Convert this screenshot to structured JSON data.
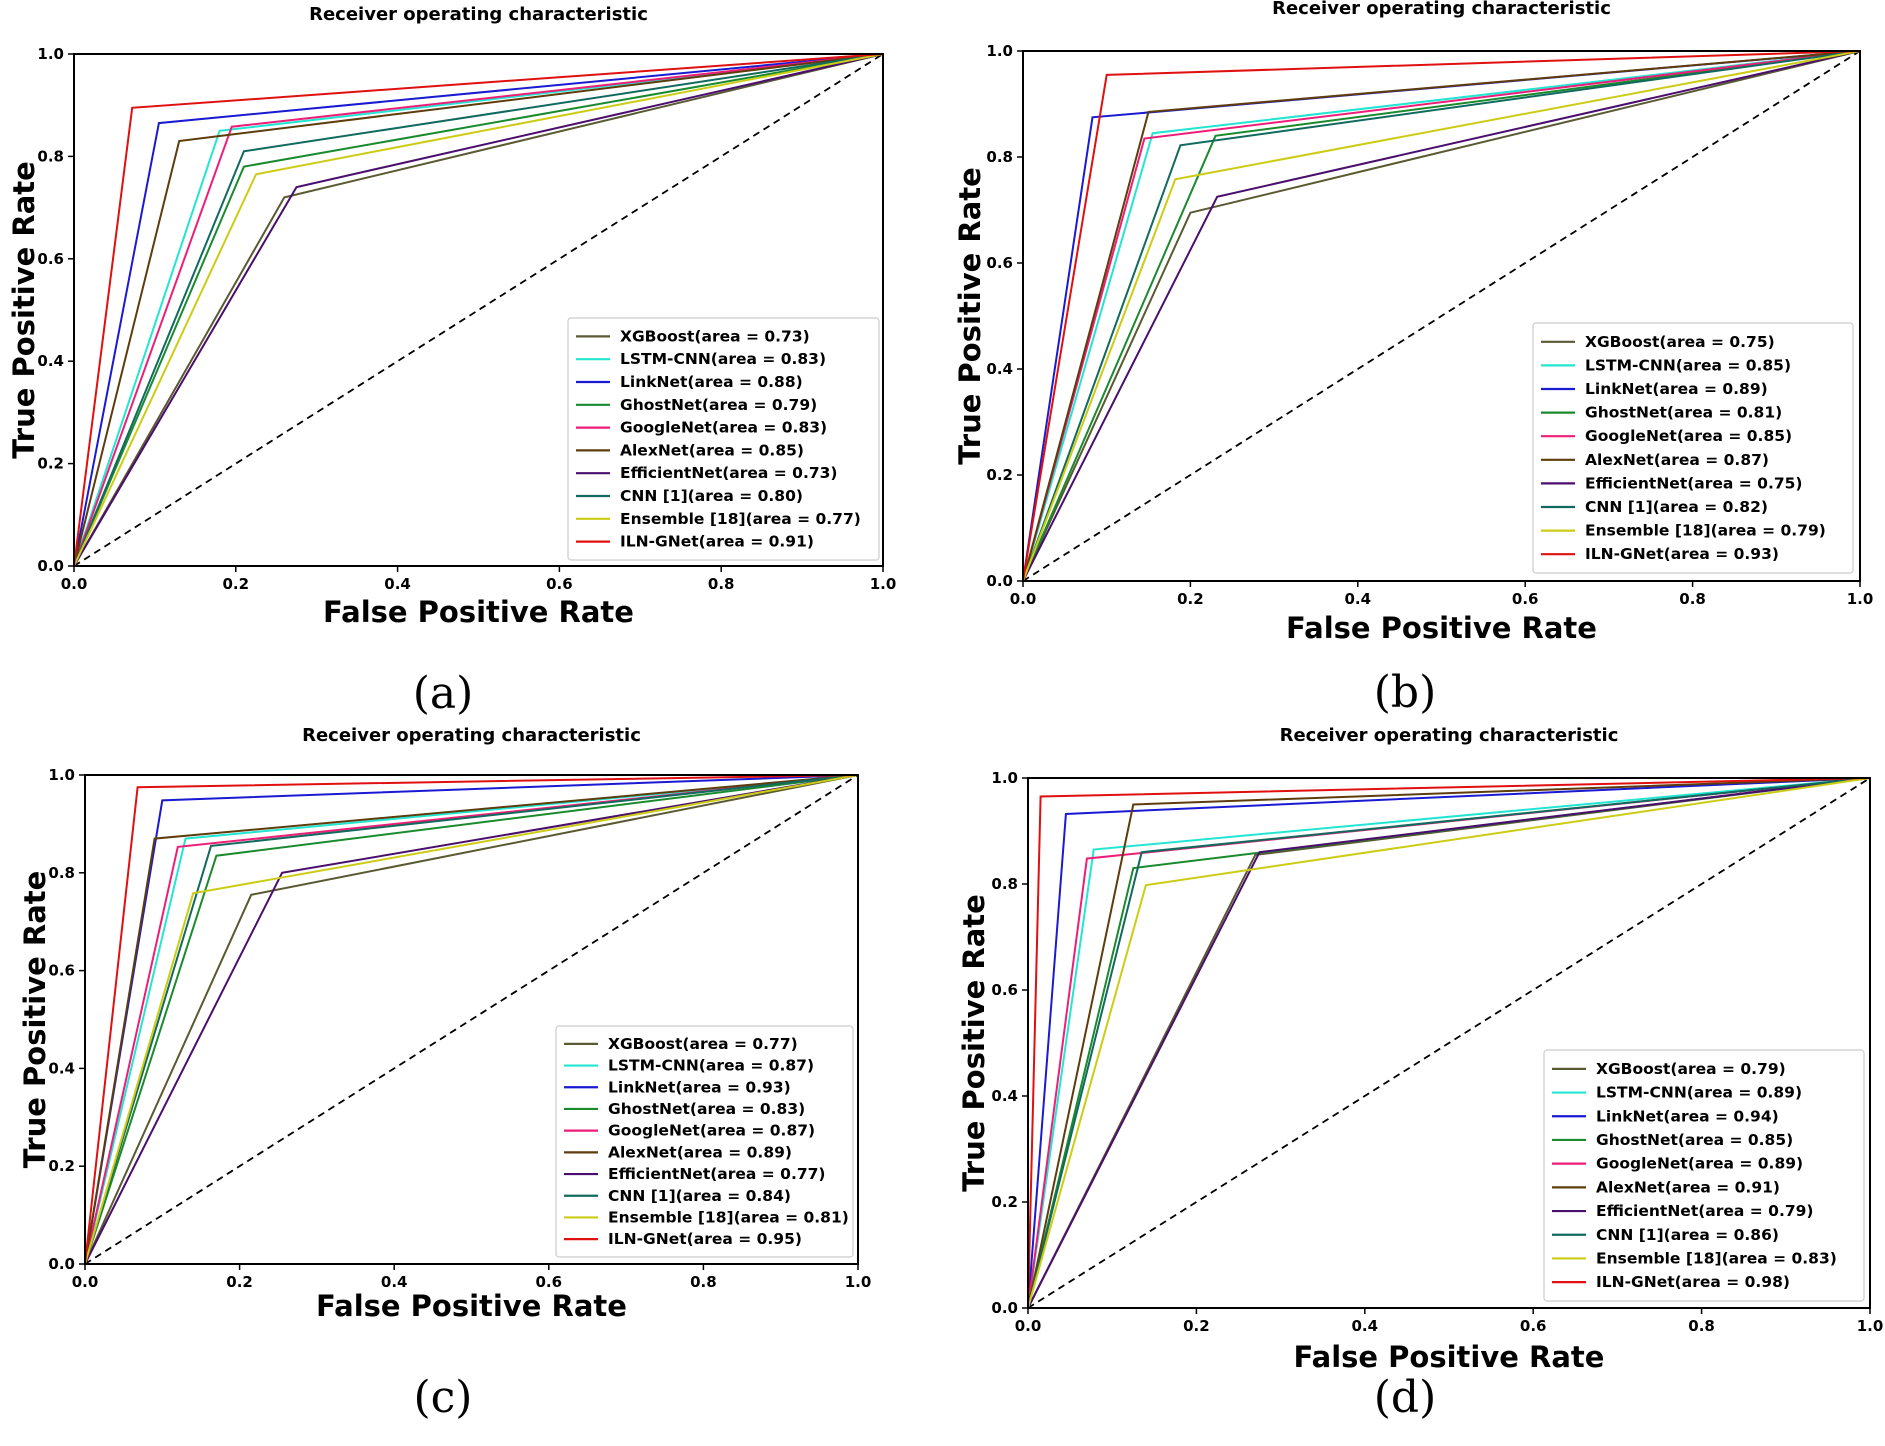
{
  "colors": {
    "XGBoost": "#5a5a32",
    "LSTM-CNN": "#22e6d2",
    "LinkNet": "#1a1ad2",
    "GhostNet": "#1a8a2e",
    "GoogleNet": "#ee1e78",
    "AlexNet": "#5e3c0c",
    "EfficientNet": "#4a0f6e",
    "CNN [1]": "#106a5e",
    "Ensemble [18]": "#cccc14",
    "ILN-GNet": "#e01010",
    "diagonal": "#000000"
  },
  "chart_data": [
    {
      "type": "line",
      "panel": "a",
      "caption": "(a)",
      "title": "Receiver operating characteristic",
      "xlabel": "False Positive Rate",
      "ylabel": "True Positive Rate",
      "xlim": [
        0,
        1
      ],
      "ylim": [
        0,
        1
      ],
      "xticks": [
        "0.0",
        "0.2",
        "0.4",
        "0.6",
        "0.8",
        "1.0"
      ],
      "yticks": [
        "0.0",
        "0.2",
        "0.4",
        "0.6",
        "0.8",
        "1.0"
      ],
      "legend_position": "lower right",
      "series": [
        {
          "name": "XGBoost",
          "label": "XGBoost(area = 0.73)",
          "x": [
            0,
            0.26,
            1
          ],
          "y": [
            0,
            0.72,
            1
          ]
        },
        {
          "name": "LSTM-CNN",
          "label": "LSTM-CNN(area = 0.83)",
          "x": [
            0,
            0.18,
            1
          ],
          "y": [
            0,
            0.85,
            1
          ]
        },
        {
          "name": "LinkNet",
          "label": "LinkNet(area = 0.88)",
          "x": [
            0,
            0.105,
            1
          ],
          "y": [
            0,
            0.865,
            1
          ]
        },
        {
          "name": "GhostNet",
          "label": "GhostNet(area = 0.79)",
          "x": [
            0,
            0.21,
            1
          ],
          "y": [
            0,
            0.78,
            1
          ]
        },
        {
          "name": "GoogleNet",
          "label": "GoogleNet(area = 0.83)",
          "x": [
            0,
            0.195,
            1
          ],
          "y": [
            0,
            0.858,
            1
          ]
        },
        {
          "name": "AlexNet",
          "label": "AlexNet(area = 0.85)",
          "x": [
            0,
            0.13,
            1
          ],
          "y": [
            0,
            0.83,
            1
          ]
        },
        {
          "name": "EfficientNet",
          "label": "EfficientNet(area = 0.73)",
          "x": [
            0,
            0.275,
            1
          ],
          "y": [
            0,
            0.74,
            1
          ]
        },
        {
          "name": "CNN [1]",
          "label": "CNN [1](area = 0.80)",
          "x": [
            0,
            0.21,
            1
          ],
          "y": [
            0,
            0.81,
            1
          ]
        },
        {
          "name": "Ensemble [18]",
          "label": "Ensemble [18](area = 0.77)",
          "x": [
            0,
            0.225,
            1
          ],
          "y": [
            0,
            0.765,
            1
          ]
        },
        {
          "name": "ILN-GNet",
          "label": "ILN-GNet(area = 0.91)",
          "x": [
            0,
            0.072,
            1
          ],
          "y": [
            0,
            0.895,
            1
          ]
        }
      ]
    },
    {
      "type": "line",
      "panel": "b",
      "caption": "(b)",
      "title": "Receiver operating characteristic",
      "xlabel": "False Positive Rate",
      "ylabel": "True Positive Rate",
      "xlim": [
        0,
        1
      ],
      "ylim": [
        0,
        1
      ],
      "xticks": [
        "0.0",
        "0.2",
        "0.4",
        "0.6",
        "0.8",
        "1.0"
      ],
      "yticks": [
        "0.0",
        "0.2",
        "0.4",
        "0.6",
        "0.8",
        "1.0"
      ],
      "legend_position": "lower right",
      "series": [
        {
          "name": "XGBoost",
          "label": "XGBoost(area = 0.75)",
          "x": [
            0,
            0.2,
            1
          ],
          "y": [
            0,
            0.695,
            1
          ]
        },
        {
          "name": "LSTM-CNN",
          "label": "LSTM-CNN(area = 0.85)",
          "x": [
            0,
            0.155,
            1
          ],
          "y": [
            0,
            0.845,
            1
          ]
        },
        {
          "name": "LinkNet",
          "label": "LinkNet(area = 0.89)",
          "x": [
            0,
            0.083,
            1
          ],
          "y": [
            0,
            0.875,
            1
          ]
        },
        {
          "name": "GhostNet",
          "label": "GhostNet(area = 0.81)",
          "x": [
            0,
            0.23,
            1
          ],
          "y": [
            0,
            0.84,
            1
          ]
        },
        {
          "name": "GoogleNet",
          "label": "GoogleNet(area = 0.85)",
          "x": [
            0,
            0.145,
            1
          ],
          "y": [
            0,
            0.835,
            1
          ]
        },
        {
          "name": "AlexNet",
          "label": "AlexNet(area = 0.87)",
          "x": [
            0,
            0.15,
            1
          ],
          "y": [
            0,
            0.885,
            1
          ]
        },
        {
          "name": "EfficientNet",
          "label": "EfficientNet(area = 0.75)",
          "x": [
            0,
            0.232,
            1
          ],
          "y": [
            0,
            0.725,
            1
          ]
        },
        {
          "name": "CNN [1]",
          "label": "CNN [1](area = 0.82)",
          "x": [
            0,
            0.188,
            1
          ],
          "y": [
            0,
            0.822,
            1
          ]
        },
        {
          "name": "Ensemble [18]",
          "label": "Ensemble [18](area = 0.79)",
          "x": [
            0,
            0.182,
            1
          ],
          "y": [
            0,
            0.758,
            1
          ]
        },
        {
          "name": "ILN-GNet",
          "label": "ILN-GNet(area = 0.93)",
          "x": [
            0,
            0.1,
            1
          ],
          "y": [
            0,
            0.955,
            1
          ]
        }
      ]
    },
    {
      "type": "line",
      "panel": "c",
      "caption": "(c)",
      "title": "Receiver operating characteristic",
      "xlabel": "False Positive Rate",
      "ylabel": "True Positive Rate",
      "xlim": [
        0,
        1
      ],
      "ylim": [
        0,
        1
      ],
      "xticks": [
        "0.0",
        "0.2",
        "0.4",
        "0.6",
        "0.8",
        "1.0"
      ],
      "yticks": [
        "0.0",
        "0.2",
        "0.4",
        "0.6",
        "0.8",
        "1.0"
      ],
      "legend_position": "lower right",
      "series": [
        {
          "name": "XGBoost",
          "label": "XGBoost(area = 0.77)",
          "x": [
            0,
            0.215,
            1
          ],
          "y": [
            0,
            0.755,
            1
          ]
        },
        {
          "name": "LSTM-CNN",
          "label": "LSTM-CNN(area = 0.87)",
          "x": [
            0,
            0.13,
            1
          ],
          "y": [
            0,
            0.87,
            1
          ]
        },
        {
          "name": "LinkNet",
          "label": "LinkNet(area = 0.93)",
          "x": [
            0,
            0.1,
            1
          ],
          "y": [
            0,
            0.948,
            1
          ]
        },
        {
          "name": "GhostNet",
          "label": "GhostNet(area = 0.83)",
          "x": [
            0,
            0.17,
            1
          ],
          "y": [
            0,
            0.835,
            1
          ]
        },
        {
          "name": "GoogleNet",
          "label": "GoogleNet(area = 0.87)",
          "x": [
            0,
            0.12,
            1
          ],
          "y": [
            0,
            0.853,
            1
          ]
        },
        {
          "name": "AlexNet",
          "label": "AlexNet(area = 0.89)",
          "x": [
            0,
            0.09,
            1
          ],
          "y": [
            0,
            0.87,
            1
          ]
        },
        {
          "name": "EfficientNet",
          "label": "EfficientNet(area = 0.77)",
          "x": [
            0,
            0.255,
            1
          ],
          "y": [
            0,
            0.8,
            1
          ]
        },
        {
          "name": "CNN [1]",
          "label": "CNN [1](area = 0.84)",
          "x": [
            0,
            0.163,
            1
          ],
          "y": [
            0,
            0.855,
            1
          ]
        },
        {
          "name": "Ensemble [18]",
          "label": "Ensemble [18](area = 0.81)",
          "x": [
            0,
            0.14,
            1
          ],
          "y": [
            0,
            0.758,
            1
          ]
        },
        {
          "name": "ILN-GNet",
          "label": "ILN-GNet(area = 0.95)",
          "x": [
            0,
            0.068,
            1
          ],
          "y": [
            0,
            0.975,
            1
          ]
        }
      ]
    },
    {
      "type": "line",
      "panel": "d",
      "caption": "(d)",
      "title": "Receiver operating characteristic",
      "xlabel": "False Positive Rate",
      "ylabel": "True Positive Rate",
      "xlim": [
        0,
        1
      ],
      "ylim": [
        0,
        1
      ],
      "xticks": [
        "0.0",
        "0.2",
        "0.4",
        "0.6",
        "0.8",
        "1.0"
      ],
      "yticks": [
        "0.0",
        "0.2",
        "0.4",
        "0.6",
        "0.8",
        "1.0"
      ],
      "legend_position": "lower right",
      "series": [
        {
          "name": "XGBoost",
          "label": "XGBoost(area = 0.79)",
          "x": [
            0,
            0.27,
            1
          ],
          "y": [
            0,
            0.855,
            1
          ]
        },
        {
          "name": "LSTM-CNN",
          "label": "LSTM-CNN(area = 0.89)",
          "x": [
            0,
            0.078,
            1
          ],
          "y": [
            0,
            0.865,
            1
          ]
        },
        {
          "name": "LinkNet",
          "label": "LinkNet(area = 0.94)",
          "x": [
            0,
            0.045,
            1
          ],
          "y": [
            0,
            0.932,
            1
          ]
        },
        {
          "name": "GhostNet",
          "label": "GhostNet(area = 0.85)",
          "x": [
            0,
            0.125,
            1
          ],
          "y": [
            0,
            0.83,
            1
          ]
        },
        {
          "name": "GoogleNet",
          "label": "GoogleNet(area = 0.89)",
          "x": [
            0,
            0.07,
            1
          ],
          "y": [
            0,
            0.848,
            1
          ]
        },
        {
          "name": "AlexNet",
          "label": "AlexNet(area = 0.91)",
          "x": [
            0,
            0.125,
            1
          ],
          "y": [
            0,
            0.95,
            1
          ]
        },
        {
          "name": "EfficientNet",
          "label": "EfficientNet(area = 0.79)",
          "x": [
            0,
            0.275,
            1
          ],
          "y": [
            0,
            0.86,
            1
          ]
        },
        {
          "name": "CNN [1]",
          "label": "CNN [1](area = 0.86)",
          "x": [
            0,
            0.135,
            1
          ],
          "y": [
            0,
            0.86,
            1
          ]
        },
        {
          "name": "Ensemble [18]",
          "label": "Ensemble [18](area = 0.83)",
          "x": [
            0,
            0.14,
            1
          ],
          "y": [
            0,
            0.798,
            1
          ]
        },
        {
          "name": "ILN-GNet",
          "label": "ILN-GNet(area = 0.98)",
          "x": [
            0,
            0.015,
            1
          ],
          "y": [
            0,
            0.965,
            1
          ]
        }
      ]
    }
  ]
}
